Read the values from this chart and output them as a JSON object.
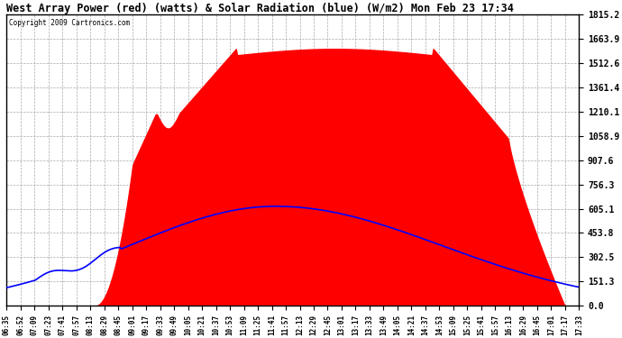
{
  "title": "West Array Power (red) (watts) & Solar Radiation (blue) (W/m2) Mon Feb 23 17:34",
  "copyright": "Copyright 2009 Cartronics.com",
  "ymax": 1815.2,
  "ymin": 0.0,
  "yticks": [
    0.0,
    151.3,
    302.5,
    453.8,
    605.1,
    756.3,
    907.6,
    1058.9,
    1210.1,
    1361.4,
    1512.6,
    1663.9,
    1815.2
  ],
  "bg_color": "#ffffff",
  "plot_bg_color": "#ffffff",
  "grid_color": "#aaaaaa",
  "red_color": "#ff0000",
  "blue_color": "#0000ff",
  "x_labels": [
    "06:35",
    "06:52",
    "07:09",
    "07:23",
    "07:41",
    "07:57",
    "08:13",
    "08:29",
    "08:45",
    "09:01",
    "09:17",
    "09:33",
    "09:49",
    "10:05",
    "10:21",
    "10:37",
    "10:53",
    "11:09",
    "11:25",
    "11:41",
    "11:57",
    "12:13",
    "12:29",
    "12:45",
    "13:01",
    "13:17",
    "13:33",
    "13:49",
    "14:05",
    "14:21",
    "14:37",
    "14:53",
    "15:09",
    "15:25",
    "15:41",
    "15:57",
    "16:13",
    "16:29",
    "16:45",
    "17:01",
    "17:17",
    "17:33"
  ],
  "n_points": 500
}
